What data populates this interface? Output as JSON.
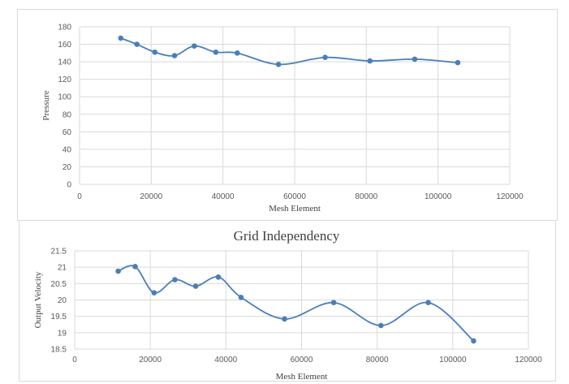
{
  "chart_data": [
    {
      "type": "scatter",
      "title": "",
      "xlabel": "Mesh Element",
      "ylabel": "Pressure",
      "xlim": [
        0,
        120000
      ],
      "ylim": [
        0,
        180
      ],
      "x_ticks": [
        0,
        20000,
        40000,
        60000,
        80000,
        100000,
        120000
      ],
      "y_ticks": [
        0,
        20,
        40,
        60,
        80,
        100,
        120,
        140,
        160,
        180
      ],
      "grid": true,
      "smooth_line": true,
      "color": "#4a7ebb",
      "series": [
        {
          "x": [
            11500,
            16000,
            21000,
            26500,
            32000,
            38000,
            44000,
            55500,
            68500,
            81000,
            93500,
            105500
          ],
          "y": [
            167,
            160,
            151,
            147,
            158,
            151,
            150,
            137,
            145,
            141,
            143,
            139
          ]
        }
      ]
    },
    {
      "type": "scatter",
      "title": "Grid Independency",
      "xlabel": "Mesh Element",
      "ylabel": "Output Velocity",
      "xlim": [
        0,
        120000
      ],
      "ylim": [
        18.5,
        21.5
      ],
      "x_ticks": [
        0,
        20000,
        40000,
        60000,
        80000,
        100000,
        120000
      ],
      "y_ticks": [
        18.5,
        19,
        19.5,
        20,
        20.5,
        21,
        21.5
      ],
      "grid": true,
      "smooth_line": true,
      "color": "#4a7ebb",
      "series": [
        {
          "x": [
            11500,
            16000,
            21000,
            26500,
            32000,
            38000,
            44000,
            55500,
            68500,
            81000,
            93500,
            105500
          ],
          "y": [
            20.88,
            21.02,
            20.22,
            20.62,
            20.42,
            20.7,
            20.08,
            19.42,
            19.92,
            19.22,
            19.92,
            18.75
          ]
        }
      ]
    }
  ]
}
